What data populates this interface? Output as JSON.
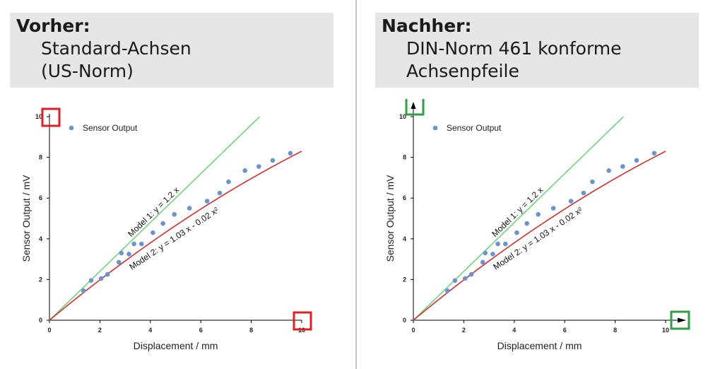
{
  "panels": {
    "left": {
      "title": "Vorher:",
      "line1": "Standard-Achsen",
      "line2": "(US-Norm)"
    },
    "right": {
      "title": "Nachher:",
      "line1": "DIN-Norm 461 konforme",
      "line2": "Achsenpfeile"
    }
  },
  "highlight_colors": {
    "left": "#e02020",
    "right": "#2ea043"
  },
  "chart_data": {
    "type": "scatter",
    "xlabel": "Displacement / mm",
    "ylabel": "Sensor Output / mV",
    "xlim": [
      0,
      10
    ],
    "ylim": [
      0,
      10
    ],
    "xticks": [
      0,
      2,
      4,
      6,
      8,
      10
    ],
    "yticks": [
      0,
      2,
      4,
      6,
      8,
      10
    ],
    "legend": {
      "label": "Sensor Output",
      "position": "top-left"
    },
    "series": [
      {
        "name": "Sensor Output",
        "color": "#6b93cf",
        "points": [
          [
            1.35,
            1.45
          ],
          [
            1.65,
            1.95
          ],
          [
            2.05,
            2.05
          ],
          [
            2.3,
            2.25
          ],
          [
            2.75,
            2.85
          ],
          [
            2.85,
            3.3
          ],
          [
            3.15,
            3.25
          ],
          [
            3.35,
            3.75
          ],
          [
            3.65,
            3.75
          ],
          [
            4.1,
            4.3
          ],
          [
            4.5,
            4.75
          ],
          [
            4.95,
            5.2
          ],
          [
            5.55,
            5.5
          ],
          [
            6.25,
            5.85
          ],
          [
            6.75,
            6.25
          ],
          [
            7.1,
            6.8
          ],
          [
            7.75,
            7.35
          ],
          [
            8.3,
            7.55
          ],
          [
            8.85,
            7.85
          ],
          [
            9.55,
            8.2
          ]
        ]
      }
    ],
    "models": [
      {
        "label": "Model 1: y = 1.2 x",
        "color": "#6fd67a",
        "a": 1.2,
        "b": 0.0,
        "xmax": 8.33
      },
      {
        "label": "Model 2: y = 1.03 x - 0.02 x²",
        "color": "#e02a2a",
        "a": 1.03,
        "b": -0.02,
        "xmax": 10.0
      }
    ]
  }
}
